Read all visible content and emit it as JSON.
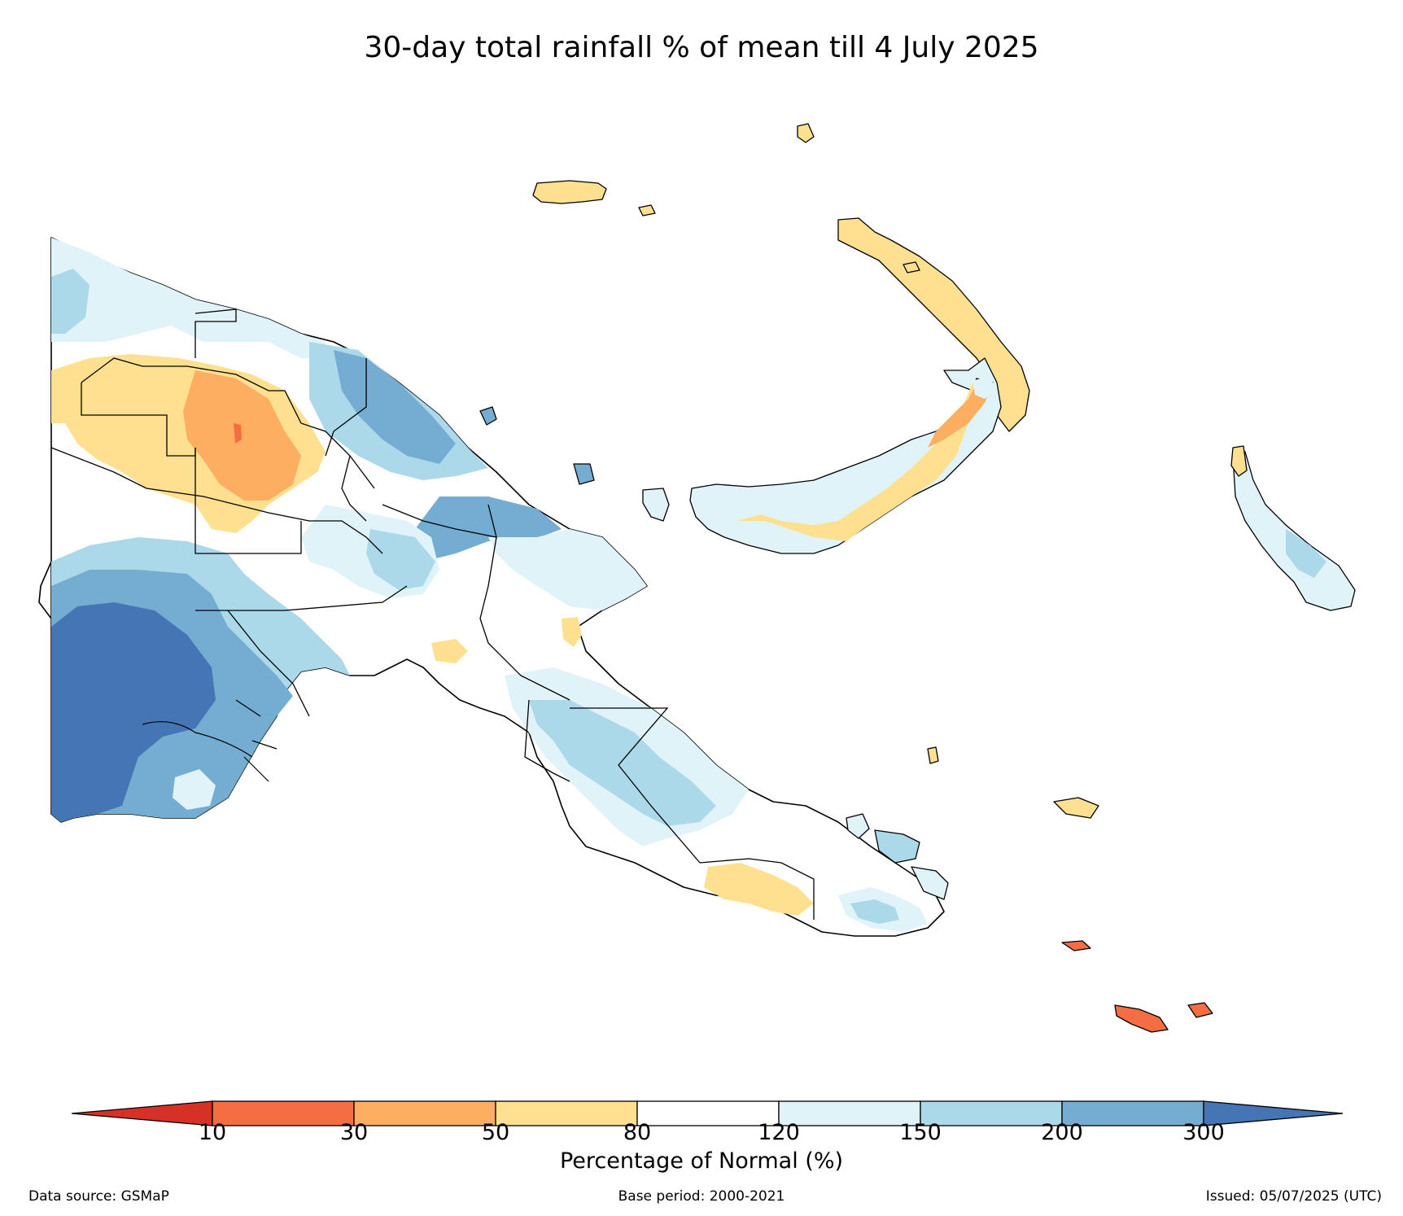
{
  "title": "30-day total rainfall % of mean till 4 July 2025",
  "legend": {
    "label": "Percentage of Normal (%)",
    "ticks": [
      "10",
      "30",
      "50",
      "80",
      "120",
      "150",
      "200",
      "300"
    ],
    "bins": [
      {
        "range": "<10",
        "color": "#d73027"
      },
      {
        "range": "10-30",
        "color": "#f46d43"
      },
      {
        "range": "30-50",
        "color": "#fdae61"
      },
      {
        "range": "50-80",
        "color": "#fee090"
      },
      {
        "range": "80-120",
        "color": "#ffffff"
      },
      {
        "range": "120-150",
        "color": "#e0f3f8"
      },
      {
        "range": "150-200",
        "color": "#abd9e9"
      },
      {
        "range": "200-300",
        "color": "#74add1"
      },
      {
        "range": ">300",
        "color": "#4575b4"
      }
    ]
  },
  "footer": {
    "source": "Data source: GSMaP",
    "base_period": "Base period: 2000-2021",
    "issued": "Issued: 05/07/2025 (UTC)"
  }
}
